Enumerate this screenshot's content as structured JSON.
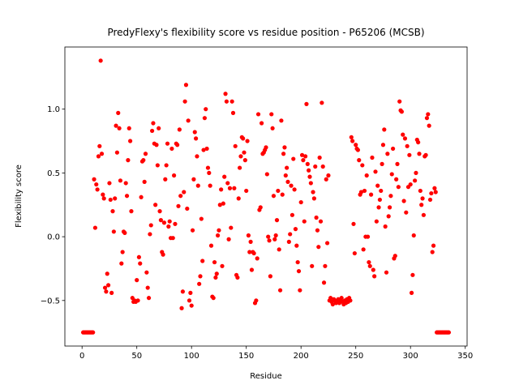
{
  "chart_data": {
    "type": "scatter",
    "title": "PredyFlexy's flexibility score vs residue position - P65206 (MCSB)",
    "x_label": "Residue",
    "y_label": "Flexibility score",
    "color": "#ff0000",
    "xlim": [
      -15.7,
      351.7
    ],
    "ylim": [
      -0.857,
      1.487
    ],
    "xticks": [
      0,
      50,
      100,
      150,
      200,
      250,
      300,
      350
    ],
    "yticks": [
      {
        "value": -0.5,
        "label": "−0.5"
      },
      {
        "value": 0,
        "label": "0.0"
      },
      0.5,
      {
        "value": 1,
        "label": "1.0"
      }
    ],
    "x": [
      1,
      2,
      3,
      4,
      5,
      6,
      7,
      8,
      9,
      10,
      11,
      12,
      13,
      14,
      15,
      16,
      17,
      18,
      19,
      20,
      21,
      22,
      23,
      24,
      25,
      26,
      27,
      28,
      29,
      30,
      31,
      32,
      33,
      34,
      35,
      36,
      37,
      38,
      39,
      40,
      41,
      42,
      43,
      44,
      45,
      46,
      47,
      48,
      49,
      50,
      51,
      52,
      53,
      54,
      55,
      56,
      57,
      58,
      59,
      60,
      61,
      62,
      63,
      64,
      65,
      66,
      67,
      68,
      69,
      70,
      71,
      72,
      73,
      74,
      75,
      76,
      77,
      78,
      79,
      80,
      81,
      82,
      83,
      84,
      85,
      86,
      87,
      88,
      89,
      90,
      91,
      92,
      93,
      94,
      95,
      96,
      97,
      98,
      99,
      100,
      101,
      102,
      103,
      104,
      105,
      106,
      107,
      108,
      109,
      110,
      111,
      112,
      113,
      114,
      115,
      116,
      117,
      118,
      119,
      120,
      121,
      122,
      123,
      124,
      125,
      126,
      127,
      128,
      129,
      130,
      131,
      132,
      133,
      134,
      135,
      136,
      137,
      138,
      139,
      140,
      141,
      142,
      143,
      144,
      145,
      146,
      147,
      148,
      149,
      150,
      151,
      152,
      153,
      154,
      155,
      156,
      157,
      158,
      159,
      160,
      161,
      162,
      163,
      164,
      165,
      166,
      167,
      168,
      169,
      170,
      171,
      172,
      173,
      174,
      175,
      176,
      177,
      178,
      179,
      180,
      181,
      182,
      183,
      184,
      185,
      186,
      187,
      188,
      189,
      190,
      191,
      192,
      193,
      194,
      195,
      196,
      197,
      198,
      199,
      200,
      201,
      202,
      203,
      204,
      205,
      206,
      207,
      208,
      209,
      210,
      211,
      212,
      213,
      214,
      215,
      216,
      217,
      218,
      219,
      220,
      221,
      222,
      223,
      224,
      225,
      226,
      227,
      228,
      229,
      230,
      231,
      232,
      233,
      234,
      235,
      236,
      237,
      238,
      239,
      240,
      241,
      242,
      243,
      244,
      245,
      246,
      247,
      248,
      249,
      250,
      251,
      252,
      253,
      254,
      255,
      256,
      257,
      258,
      259,
      260,
      261,
      262,
      263,
      264,
      265,
      266,
      267,
      268,
      269,
      270,
      271,
      272,
      273,
      274,
      275,
      276,
      277,
      278,
      279,
      280,
      281,
      282,
      283,
      284,
      285,
      286,
      287,
      288,
      289,
      290,
      291,
      292,
      293,
      294,
      295,
      296,
      297,
      298,
      299,
      300,
      301,
      302,
      303,
      304,
      305,
      306,
      307,
      308,
      309,
      310,
      311,
      312,
      313,
      314,
      315,
      316,
      317,
      318,
      319,
      320,
      321,
      322,
      323,
      324,
      325,
      326,
      327,
      328,
      329,
      330,
      331,
      332,
      333,
      334,
      335
    ],
    "values": [
      -0.75,
      -0.75,
      -0.75,
      -0.75,
      -0.75,
      -0.75,
      -0.75,
      -0.75,
      -0.75,
      -0.75,
      0.45,
      0.07,
      0.41,
      0.37,
      0.63,
      0.71,
      1.38,
      0.65,
      0.33,
      0.3,
      -0.4,
      -0.43,
      -0.29,
      -0.38,
      0.42,
      0.29,
      -0.44,
      0.2,
      0.04,
      0.3,
      0.87,
      0.66,
      0.97,
      0.85,
      0.44,
      -0.21,
      -0.12,
      0.04,
      0.03,
      0.42,
      0.32,
      0.6,
      0.85,
      0.75,
      0.2,
      -0.48,
      -0.51,
      -0.5,
      -0.51,
      -0.34,
      -0.5,
      -0.16,
      -0.21,
      0.31,
      0.59,
      0.6,
      0.43,
      0.65,
      -0.28,
      -0.4,
      -0.48,
      0.02,
      0.09,
      0.83,
      0.89,
      0.73,
      0.25,
      0.72,
      0.56,
      0.85,
      0.2,
      0.13,
      -0.12,
      -0.14,
      0.11,
      0.45,
      0.56,
      0.73,
      0.08,
      0.12,
      -0.01,
      0.69,
      -0.01,
      0.48,
      0.1,
      0.73,
      0.72,
      0.24,
      0.84,
      0.32,
      -0.56,
      -0.43,
      0.35,
      1.06,
      1.19,
      0.22,
      0.91,
      -0.5,
      -0.44,
      -0.54,
      0.05,
      0.45,
      0.82,
      0.77,
      0.63,
      0.4,
      -0.37,
      -0.31,
      0.14,
      -0.19,
      0.68,
      0.93,
      1.0,
      0.69,
      0.54,
      0.5,
      0.4,
      -0.07,
      -0.47,
      -0.48,
      -0.2,
      -0.32,
      -0.29,
      0.01,
      0.05,
      0.25,
      0.37,
      -0.23,
      0.26,
      0.47,
      1.12,
      1.06,
      0.42,
      -0.02,
      0.38,
      0.07,
      1.06,
      0.97,
      0.38,
      0.71,
      -0.3,
      -0.32,
      0.3,
      0.54,
      0.63,
      0.78,
      0.77,
      0.66,
      0.6,
      0.36,
      0.75,
      0.01,
      -0.12,
      -0.04,
      -0.26,
      -0.12,
      -0.13,
      -0.52,
      -0.5,
      -0.17,
      0.96,
      0.21,
      0.23,
      0.89,
      0.65,
      0.66,
      0.68,
      0.7,
      0.49,
      0.0,
      -0.03,
      -0.31,
      0.96,
      0.85,
      0.32,
      -0.02,
      0.01,
      0.13,
      0.36,
      -0.1,
      -0.42,
      0.91,
      0.33,
      0.65,
      0.7,
      0.48,
      0.54,
      0.43,
      -0.04,
      0.02,
      0.4,
      0.17,
      0.61,
      0.37,
      0.06,
      -0.07,
      -0.2,
      -0.27,
      -0.42,
      0.27,
      0.64,
      0.6,
      0.12,
      0.63,
      1.04,
      0.57,
      0.52,
      0.47,
      0.42,
      -0.23,
      0.35,
      0.3,
      0.55,
      0.15,
      0.05,
      -0.08,
      0.62,
      0.12,
      1.05,
      0.55,
      -0.36,
      -0.23,
      0.45,
      -0.05,
      0.48,
      -0.5,
      -0.48,
      -0.51,
      -0.53,
      -0.49,
      -0.5,
      -0.52,
      -0.51,
      -0.49,
      -0.52,
      -0.5,
      -0.48,
      -0.51,
      -0.53,
      -0.5,
      -0.52,
      -0.49,
      -0.51,
      -0.48,
      -0.5,
      0.78,
      0.75,
      0.1,
      -0.13,
      0.72,
      0.69,
      0.68,
      0.6,
      0.33,
      0.35,
      0.56,
      -0.1,
      0.36,
      0.0,
      0.48,
      0.0,
      -0.2,
      -0.23,
      0.33,
      0.62,
      -0.26,
      -0.31,
      0.51,
      0.12,
      0.4,
      0.23,
      0.29,
      0.36,
      0.57,
      0.72,
      0.84,
      0.08,
      -0.28,
      0.65,
      0.16,
      0.23,
      0.32,
      0.49,
      0.69,
      -0.17,
      -0.15,
      0.45,
      0.57,
      0.39,
      1.06,
      0.99,
      0.98,
      0.8,
      0.28,
      0.77,
      0.19,
      0.71,
      0.39,
      0.64,
      0.41,
      -0.44,
      -0.3,
      0.01,
      0.44,
      0.5,
      0.76,
      0.74,
      0.65,
      0.36,
      0.25,
      0.3,
      0.17,
      0.63,
      0.64,
      0.93,
      0.96,
      0.87,
      0.29,
      0.34,
      -0.12,
      -0.07,
      0.38,
      0.35,
      -0.75,
      -0.75,
      -0.75,
      -0.75,
      -0.75,
      -0.75,
      -0.75,
      -0.75,
      -0.75,
      -0.75,
      -0.75,
      -0.75
    ]
  }
}
